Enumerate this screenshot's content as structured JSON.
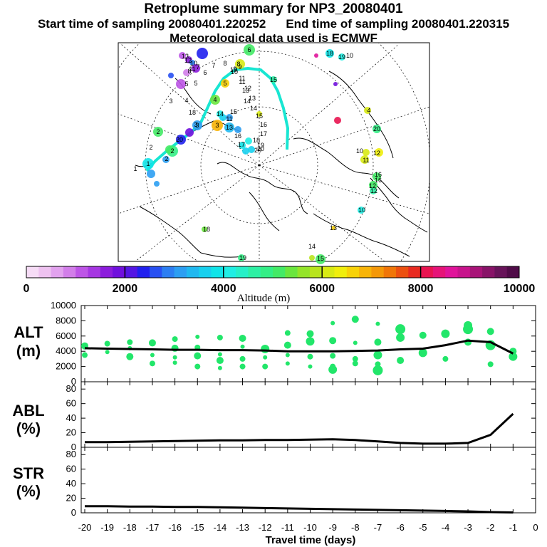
{
  "header": {
    "title": "Retroplume summary for NP3_20080401",
    "start_label": "Start time of sampling 20080401.220252",
    "end_label": "End time of sampling 20080401.220315",
    "met_label": "Meteorological data used is ECMWF"
  },
  "colorbar": {
    "label": "Altitude (m)",
    "tick_labels": [
      "0",
      "2000",
      "4000",
      "6000",
      "8000",
      "10000"
    ],
    "colors": [
      "#f6dcf6",
      "#eec2f0",
      "#e2a2ee",
      "#d27ee9",
      "#bd55e6",
      "#a637e2",
      "#8c1ddc",
      "#7010dd",
      "#5416e3",
      "#2020ee",
      "#2850f2",
      "#2c7ef2",
      "#2c9ef2",
      "#20b8f0",
      "#18d0ee",
      "#10e4e8",
      "#20eee4",
      "#26f0c8",
      "#2ef0a4",
      "#34ee86",
      "#44ea66",
      "#6ae63e",
      "#94e42a",
      "#b8e41e",
      "#d8ea14",
      "#f0ee0c",
      "#f8d208",
      "#f8b408",
      "#f49808",
      "#f07608",
      "#ec5010",
      "#e82a20",
      "#e81450",
      "#e61478",
      "#e0149a",
      "#c8148c",
      "#a81478",
      "#881468",
      "#68145a",
      "#500c48"
    ]
  },
  "map": {
    "track_color": "#18e6d2",
    "day_labels": [
      "1",
      "2",
      "3",
      "4",
      "5",
      "6",
      "7",
      "8",
      "9",
      "10",
      "11",
      "12",
      "13",
      "14",
      "15",
      "16",
      "17",
      "18",
      "19",
      "20"
    ],
    "cluster_labels": [
      "6",
      "18",
      "19",
      "10",
      "8",
      "9",
      "10",
      "11",
      "15",
      "13",
      "14",
      "5",
      "7",
      "8",
      "10",
      "11",
      "12",
      "13",
      "3",
      "4",
      "5",
      "4",
      "14",
      "16",
      "3",
      "2",
      "13",
      "20",
      "2",
      "18",
      "12",
      "11",
      "10",
      "15",
      "16",
      "17",
      "20",
      "2",
      "1",
      "12",
      "3",
      "11",
      "16",
      "12",
      "10",
      "19",
      "18",
      "15",
      "14",
      "13",
      "20"
    ]
  },
  "chart_data": [
    {
      "type": "line",
      "panel": "ALT",
      "ylabel": "ALT (m)",
      "x": [
        -20,
        -19,
        -18,
        -17,
        -16,
        -15,
        -14,
        -13,
        -12,
        -11,
        -10,
        -9,
        -8,
        -7,
        -6,
        -5,
        -4,
        -3,
        -2,
        -1
      ],
      "ylim": [
        0,
        10000
      ],
      "yticks": [
        0,
        2000,
        4000,
        6000,
        8000,
        10000
      ],
      "series": [
        {
          "name": "mean altitude",
          "values": [
            4400,
            4350,
            4300,
            4250,
            4200,
            4200,
            4150,
            4150,
            4100,
            4000,
            4000,
            4000,
            4050,
            4100,
            4250,
            4350,
            4800,
            5400,
            5200,
            3700
          ]
        }
      ],
      "scatter_color": "#22e66a",
      "scatter_points": [
        {
          "x": -20,
          "y": 3500
        },
        {
          "x": -20,
          "y": 4700
        },
        {
          "x": -19,
          "y": 3900
        },
        {
          "x": -19,
          "y": 5000
        },
        {
          "x": -18,
          "y": 3300
        },
        {
          "x": -18,
          "y": 4400
        },
        {
          "x": -18,
          "y": 5200
        },
        {
          "x": -17,
          "y": 3500
        },
        {
          "x": -17,
          "y": 5100
        },
        {
          "x": -17,
          "y": 2400
        },
        {
          "x": -16,
          "y": 3200
        },
        {
          "x": -16,
          "y": 4400
        },
        {
          "x": -16,
          "y": 5600
        },
        {
          "x": -16,
          "y": 2500
        },
        {
          "x": -15,
          "y": 4500
        },
        {
          "x": -15,
          "y": 5900
        },
        {
          "x": -15,
          "y": 3400
        },
        {
          "x": -15,
          "y": 2000
        },
        {
          "x": -14,
          "y": 3600
        },
        {
          "x": -14,
          "y": 5800
        },
        {
          "x": -14,
          "y": 2800
        },
        {
          "x": -14,
          "y": 1800
        },
        {
          "x": -13,
          "y": 3000
        },
        {
          "x": -13,
          "y": 4600
        },
        {
          "x": -13,
          "y": 5700
        },
        {
          "x": -13,
          "y": 2000
        },
        {
          "x": -12,
          "y": 3200
        },
        {
          "x": -12,
          "y": 4300
        },
        {
          "x": -12,
          "y": 2000
        },
        {
          "x": -11,
          "y": 3500
        },
        {
          "x": -11,
          "y": 4800
        },
        {
          "x": -11,
          "y": 6400
        },
        {
          "x": -11,
          "y": 2400
        },
        {
          "x": -10,
          "y": 3300
        },
        {
          "x": -10,
          "y": 5300
        },
        {
          "x": -10,
          "y": 6300
        },
        {
          "x": -10,
          "y": 2000
        },
        {
          "x": -9,
          "y": 3400
        },
        {
          "x": -9,
          "y": 5400
        },
        {
          "x": -9,
          "y": 7700
        },
        {
          "x": -9,
          "y": 2000
        },
        {
          "x": -9,
          "y": 1600
        },
        {
          "x": -8,
          "y": 3000
        },
        {
          "x": -8,
          "y": 5100
        },
        {
          "x": -8,
          "y": 8200
        },
        {
          "x": -8,
          "y": 2400
        },
        {
          "x": -7,
          "y": 3500
        },
        {
          "x": -7,
          "y": 5200
        },
        {
          "x": -7,
          "y": 7600
        },
        {
          "x": -7,
          "y": 2300
        },
        {
          "x": -7,
          "y": 1500
        },
        {
          "x": -6,
          "y": 2800
        },
        {
          "x": -6,
          "y": 5800
        },
        {
          "x": -6,
          "y": 6900
        },
        {
          "x": -5,
          "y": 3800
        },
        {
          "x": -5,
          "y": 6100
        },
        {
          "x": -4,
          "y": 3000
        },
        {
          "x": -4,
          "y": 6300
        },
        {
          "x": -3,
          "y": 5200
        },
        {
          "x": -3,
          "y": 6900
        },
        {
          "x": -3,
          "y": 7400
        },
        {
          "x": -2,
          "y": 4800
        },
        {
          "x": -2,
          "y": 6600
        },
        {
          "x": -2,
          "y": 2300
        },
        {
          "x": -1,
          "y": 3300
        },
        {
          "x": -1,
          "y": 4000
        }
      ]
    },
    {
      "type": "line",
      "panel": "ABL",
      "ylabel": "ABL (%)",
      "x": [
        -20,
        -19,
        -18,
        -17,
        -16,
        -15,
        -14,
        -13,
        -12,
        -11,
        -10,
        -9,
        -8,
        -7,
        -6,
        -5,
        -4,
        -3,
        -2,
        -1
      ],
      "ylim": [
        0,
        90
      ],
      "yticks": [
        0,
        20,
        40,
        60,
        80
      ],
      "series": [
        {
          "name": "ABL fraction",
          "values": [
            7,
            7,
            7.5,
            8,
            8.5,
            9,
            9.5,
            9.5,
            10,
            10,
            10.5,
            11,
            10,
            8,
            6,
            5,
            5,
            6,
            17,
            46
          ]
        }
      ]
    },
    {
      "type": "line",
      "panel": "STR",
      "ylabel": "STR (%)",
      "x": [
        -20,
        -19,
        -18,
        -17,
        -16,
        -15,
        -14,
        -13,
        -12,
        -11,
        -10,
        -9,
        -8,
        -7,
        -6,
        -5,
        -4,
        -3,
        -2,
        -1
      ],
      "xlabel": "Travel time (days)",
      "xlim": [
        -20,
        0
      ],
      "xticks": [
        -20,
        -19,
        -18,
        -17,
        -16,
        -15,
        -14,
        -13,
        -12,
        -11,
        -10,
        -9,
        -8,
        -7,
        -6,
        -5,
        -4,
        -3,
        -2,
        -1,
        0
      ],
      "ylim": [
        0,
        90
      ],
      "yticks": [
        0,
        20,
        40,
        60,
        80
      ],
      "series": [
        {
          "name": "stratospheric fraction",
          "values": [
            9,
            9,
            8.5,
            8.5,
            8,
            8,
            7.5,
            7,
            6.5,
            6,
            5.5,
            5,
            4.5,
            4,
            3.5,
            3,
            2.5,
            2,
            1,
            0.5
          ]
        }
      ]
    }
  ]
}
